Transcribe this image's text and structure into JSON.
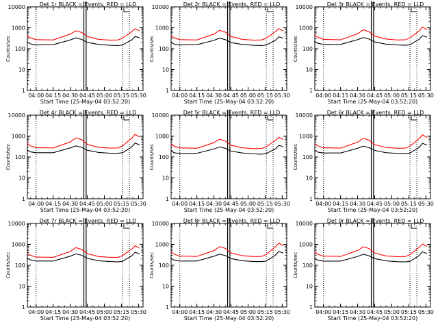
{
  "chart_data": [
    {
      "type": "line",
      "title": "Det 1r BLACK = Events, RED = LLD",
      "xlabel": "Start Time (25-May-04 03:52:20)",
      "ylabel": "Counts/sec",
      "ylog": true,
      "ylim": [
        1,
        10000
      ],
      "xlim": [
        "03:52:20",
        "05:34:00"
      ],
      "x_ticks": [
        "04:00",
        "04:15",
        "04:30",
        "04:45",
        "05:00",
        "05:15",
        "05:30"
      ],
      "y_ticks": [
        "1",
        "10",
        "100",
        "1000",
        "10000"
      ],
      "series": [
        {
          "color": "#000000",
          "x": [
            "03:52",
            "03:55",
            "04:00",
            "04:15",
            "04:30",
            "04:35",
            "04:40",
            "04:45",
            "04:55",
            "05:05",
            "05:12",
            "05:16",
            "05:20",
            "05:24",
            "05:27",
            "05:31"
          ],
          "values": [
            220,
            170,
            150,
            155,
            260,
            330,
            280,
            200,
            160,
            145,
            140,
            150,
            200,
            260,
            380,
            330
          ]
        },
        {
          "color": "#ff0000",
          "x": [
            "03:52",
            "03:55",
            "04:00",
            "04:15",
            "04:30",
            "04:35",
            "04:40",
            "04:45",
            "04:55",
            "05:05",
            "05:12",
            "05:16",
            "05:20",
            "05:24",
            "05:27",
            "05:31"
          ],
          "values": [
            420,
            330,
            270,
            260,
            500,
            720,
            600,
            380,
            280,
            255,
            260,
            320,
            450,
            650,
            900,
            700
          ]
        }
      ]
    },
    {
      "type": "line",
      "title": "Det 2r BLACK = Events, RED = LLD",
      "xlabel": "Start Time (25-May-04 03:52:20)",
      "ylabel": "Counts/sec",
      "ylog": true,
      "ylim": [
        1,
        10000
      ],
      "xlim": [
        "03:52:20",
        "05:34:00"
      ],
      "x_ticks": [
        "04:00",
        "04:15",
        "04:30",
        "04:45",
        "05:00",
        "05:15",
        "05:30"
      ],
      "y_ticks": [
        "1",
        "10",
        "100",
        "1000",
        "10000"
      ],
      "series": [
        {
          "color": "#000000",
          "x": [
            "03:52",
            "03:55",
            "04:00",
            "04:15",
            "04:30",
            "04:35",
            "04:40",
            "04:45",
            "04:55",
            "05:05",
            "05:12",
            "05:16",
            "05:20",
            "05:24",
            "05:27",
            "05:31"
          ],
          "values": [
            210,
            165,
            150,
            155,
            250,
            320,
            270,
            195,
            160,
            145,
            140,
            150,
            195,
            250,
            370,
            320
          ]
        },
        {
          "color": "#ff0000",
          "x": [
            "03:52",
            "03:55",
            "04:00",
            "04:15",
            "04:30",
            "04:35",
            "04:40",
            "04:45",
            "04:55",
            "05:05",
            "05:12",
            "05:16",
            "05:20",
            "05:24",
            "05:27",
            "05:31"
          ],
          "values": [
            420,
            330,
            270,
            260,
            500,
            750,
            620,
            380,
            280,
            255,
            260,
            320,
            450,
            650,
            900,
            700
          ]
        }
      ]
    },
    {
      "type": "line",
      "title": "Det 3r BLACK = Events, RED = LLD",
      "xlabel": "Start Time (25-May-04 03:52:20)",
      "ylabel": "Counts/sec",
      "ylog": true,
      "ylim": [
        1,
        10000
      ],
      "xlim": [
        "03:52:20",
        "05:34:00"
      ],
      "x_ticks": [
        "04:00",
        "04:15",
        "04:30",
        "04:45",
        "05:00",
        "05:15",
        "05:30"
      ],
      "y_ticks": [
        "1",
        "10",
        "100",
        "1000",
        "10000"
      ],
      "series": [
        {
          "color": "#000000",
          "x": [
            "03:52",
            "03:55",
            "04:00",
            "04:15",
            "04:30",
            "04:35",
            "04:40",
            "04:45",
            "04:55",
            "05:05",
            "05:12",
            "05:16",
            "05:20",
            "05:24",
            "05:27",
            "05:31"
          ],
          "values": [
            230,
            180,
            160,
            160,
            270,
            340,
            290,
            210,
            165,
            150,
            145,
            155,
            210,
            280,
            420,
            350
          ]
        },
        {
          "color": "#ff0000",
          "x": [
            "03:52",
            "03:55",
            "04:00",
            "04:15",
            "04:30",
            "04:35",
            "04:40",
            "04:45",
            "04:55",
            "05:05",
            "05:12",
            "05:16",
            "05:20",
            "05:24",
            "05:27",
            "05:31"
          ],
          "values": [
            450,
            350,
            280,
            265,
            520,
            800,
            650,
            400,
            290,
            260,
            265,
            330,
            480,
            700,
            1100,
            800
          ]
        }
      ]
    },
    {
      "type": "line",
      "title": "Det 4r BLACK = Events, RED = LLD",
      "xlabel": "Start Time (25-May-04 03:52:20)",
      "ylabel": "Counts/sec",
      "ylog": true,
      "ylim": [
        1,
        10000
      ],
      "xlim": [
        "03:52:20",
        "05:34:00"
      ],
      "x_ticks": [
        "04:00",
        "04:15",
        "04:30",
        "04:45",
        "05:00",
        "05:15",
        "05:30"
      ],
      "y_ticks": [
        "1",
        "10",
        "100",
        "1000",
        "10000"
      ],
      "series": [
        {
          "color": "#000000",
          "x": [
            "03:52",
            "03:55",
            "04:00",
            "04:15",
            "04:30",
            "04:35",
            "04:40",
            "04:45",
            "04:55",
            "05:05",
            "05:12",
            "05:16",
            "05:20",
            "05:24",
            "05:27",
            "05:31"
          ],
          "values": [
            220,
            175,
            160,
            160,
            270,
            340,
            290,
            210,
            165,
            150,
            150,
            160,
            220,
            300,
            460,
            380
          ]
        },
        {
          "color": "#ff0000",
          "x": [
            "03:52",
            "03:55",
            "04:00",
            "04:15",
            "04:30",
            "04:35",
            "04:40",
            "04:45",
            "04:55",
            "05:05",
            "05:12",
            "05:16",
            "05:20",
            "05:24",
            "05:27",
            "05:31"
          ],
          "values": [
            450,
            340,
            280,
            270,
            520,
            820,
            670,
            400,
            290,
            265,
            270,
            340,
            520,
            780,
            1200,
            900
          ]
        }
      ]
    },
    {
      "type": "line",
      "title": "Det 5r BLACK = Events, RED = LLD",
      "xlabel": "Start Time (25-May-04 03:52:20)",
      "ylabel": "Counts/sec",
      "ylog": true,
      "ylim": [
        1,
        10000
      ],
      "xlim": [
        "03:52:20",
        "05:34:00"
      ],
      "x_ticks": [
        "04:00",
        "04:15",
        "04:30",
        "04:45",
        "05:00",
        "05:15",
        "05:30"
      ],
      "y_ticks": [
        "1",
        "10",
        "100",
        "1000",
        "10000"
      ],
      "series": [
        {
          "color": "#000000",
          "x": [
            "03:52",
            "03:55",
            "04:00",
            "04:15",
            "04:30",
            "04:35",
            "04:40",
            "04:45",
            "04:55",
            "05:05",
            "05:12",
            "05:16",
            "05:20",
            "05:24",
            "05:27",
            "05:31"
          ],
          "values": [
            200,
            160,
            145,
            150,
            240,
            300,
            260,
            190,
            155,
            140,
            135,
            145,
            190,
            240,
            360,
            310
          ]
        },
        {
          "color": "#ff0000",
          "x": [
            "03:52",
            "03:55",
            "04:00",
            "04:15",
            "04:30",
            "04:35",
            "04:40",
            "04:45",
            "04:55",
            "05:05",
            "05:12",
            "05:16",
            "05:20",
            "05:24",
            "05:27",
            "05:31"
          ],
          "values": [
            420,
            330,
            270,
            260,
            480,
            700,
            580,
            370,
            275,
            250,
            255,
            310,
            440,
            620,
            880,
            680
          ]
        }
      ]
    },
    {
      "type": "line",
      "title": "Det 6r BLACK = Events, RED = LLD",
      "xlabel": "Start Time (25-May-04 03:52:20)",
      "ylabel": "Counts/sec",
      "ylog": true,
      "ylim": [
        1,
        10000
      ],
      "xlim": [
        "03:52:20",
        "05:34:00"
      ],
      "x_ticks": [
        "04:00",
        "04:15",
        "04:30",
        "04:45",
        "05:00",
        "05:15",
        "05:30"
      ],
      "y_ticks": [
        "1",
        "10",
        "100",
        "1000",
        "10000"
      ],
      "series": [
        {
          "color": "#000000",
          "x": [
            "03:52",
            "03:55",
            "04:00",
            "04:15",
            "04:30",
            "04:35",
            "04:40",
            "04:45",
            "04:55",
            "05:05",
            "05:12",
            "05:16",
            "05:20",
            "05:24",
            "05:27",
            "05:31"
          ],
          "values": [
            210,
            170,
            155,
            155,
            260,
            330,
            280,
            205,
            160,
            148,
            145,
            155,
            210,
            290,
            450,
            370
          ]
        },
        {
          "color": "#ff0000",
          "x": [
            "03:52",
            "03:55",
            "04:00",
            "04:15",
            "04:30",
            "04:35",
            "04:40",
            "04:45",
            "04:55",
            "05:05",
            "05:12",
            "05:16",
            "05:20",
            "05:24",
            "05:27",
            "05:31"
          ],
          "values": [
            430,
            340,
            275,
            265,
            510,
            780,
            640,
            390,
            285,
            260,
            265,
            330,
            500,
            750,
            1150,
            850
          ]
        }
      ]
    },
    {
      "type": "line",
      "title": "Det 7r BLACK = Events, RED = LLD",
      "xlabel": "Start Time (25-May-04 03:52:20)",
      "ylabel": "Counts/sec",
      "ylog": true,
      "ylim": [
        1,
        10000
      ],
      "xlim": [
        "03:52:20",
        "05:34:00"
      ],
      "x_ticks": [
        "04:00",
        "04:15",
        "04:30",
        "04:45",
        "05:00",
        "05:15",
        "05:30"
      ],
      "y_ticks": [
        "1",
        "10",
        "100",
        "1000",
        "10000"
      ],
      "series": [
        {
          "color": "#000000",
          "x": [
            "03:52",
            "03:55",
            "04:00",
            "04:15",
            "04:30",
            "04:35",
            "04:40",
            "04:45",
            "04:55",
            "05:05",
            "05:12",
            "05:16",
            "05:20",
            "05:24",
            "05:27",
            "05:31"
          ],
          "values": [
            230,
            180,
            160,
            160,
            270,
            350,
            300,
            215,
            165,
            150,
            145,
            155,
            210,
            280,
            420,
            350
          ]
        },
        {
          "color": "#ff0000",
          "x": [
            "03:52",
            "03:55",
            "04:00",
            "04:15",
            "04:30",
            "04:35",
            "04:40",
            "04:45",
            "04:55",
            "05:05",
            "05:12",
            "05:16",
            "05:20",
            "05:24",
            "05:27",
            "05:31"
          ],
          "values": [
            380,
            300,
            245,
            240,
            450,
            700,
            570,
            360,
            260,
            240,
            240,
            290,
            420,
            600,
            850,
            650
          ]
        }
      ]
    },
    {
      "type": "line",
      "title": "Det 8r BLACK = Events, RED = LLD",
      "xlabel": "Start Time (25-May-04 03:52:20)",
      "ylabel": "Counts/sec",
      "ylog": true,
      "ylim": [
        1,
        10000
      ],
      "xlim": [
        "03:52:20",
        "05:34:00"
      ],
      "x_ticks": [
        "04:00",
        "04:15",
        "04:30",
        "04:45",
        "05:00",
        "05:15",
        "05:30"
      ],
      "y_ticks": [
        "1",
        "10",
        "100",
        "1000",
        "10000"
      ],
      "series": [
        {
          "color": "#000000",
          "x": [
            "03:52",
            "03:55",
            "04:00",
            "04:15",
            "04:30",
            "04:35",
            "04:40",
            "04:45",
            "04:55",
            "05:05",
            "05:12",
            "05:16",
            "05:20",
            "05:24",
            "05:27",
            "05:31"
          ],
          "values": [
            220,
            175,
            160,
            160,
            270,
            340,
            290,
            210,
            165,
            150,
            150,
            160,
            220,
            300,
            460,
            380
          ]
        },
        {
          "color": "#ff0000",
          "x": [
            "03:52",
            "03:55",
            "04:00",
            "04:15",
            "04:30",
            "04:35",
            "04:40",
            "04:45",
            "04:55",
            "05:05",
            "05:12",
            "05:16",
            "05:20",
            "05:24",
            "05:27",
            "05:31"
          ],
          "values": [
            440,
            340,
            275,
            265,
            500,
            780,
            640,
            390,
            285,
            260,
            265,
            330,
            500,
            760,
            1150,
            850
          ]
        }
      ]
    },
    {
      "type": "line",
      "title": "Det 9r BLACK = Events, RED = LLD",
      "xlabel": "Start Time (25-May-04 03:52:20)",
      "ylabel": "Counts/sec",
      "ylog": true,
      "ylim": [
        1,
        10000
      ],
      "xlim": [
        "03:52:20",
        "05:34:00"
      ],
      "x_ticks": [
        "04:00",
        "04:15",
        "04:30",
        "04:45",
        "05:00",
        "05:15",
        "05:30"
      ],
      "y_ticks": [
        "1",
        "10",
        "100",
        "1000",
        "10000"
      ],
      "series": [
        {
          "color": "#000000",
          "x": [
            "03:52",
            "03:55",
            "04:00",
            "04:15",
            "04:30",
            "04:35",
            "04:40",
            "04:45",
            "04:55",
            "05:05",
            "05:12",
            "05:16",
            "05:20",
            "05:24",
            "05:27",
            "05:31"
          ],
          "values": [
            220,
            175,
            158,
            158,
            265,
            335,
            285,
            208,
            162,
            148,
            145,
            155,
            210,
            290,
            440,
            360
          ]
        },
        {
          "color": "#ff0000",
          "x": [
            "03:52",
            "03:55",
            "04:00",
            "04:15",
            "04:30",
            "04:35",
            "04:40",
            "04:45",
            "04:55",
            "05:05",
            "05:12",
            "05:16",
            "05:20",
            "05:24",
            "05:27",
            "05:31"
          ],
          "values": [
            430,
            335,
            275,
            265,
            510,
            770,
            630,
            385,
            280,
            258,
            262,
            325,
            480,
            720,
            1050,
            800
          ]
        }
      ]
    }
  ],
  "shared": {
    "vlines_dotted": [
      "04:00",
      "05:16",
      "05:22"
    ],
    "vlines_solid": [
      "04:42",
      "04:44"
    ],
    "marker_top_right": true
  }
}
